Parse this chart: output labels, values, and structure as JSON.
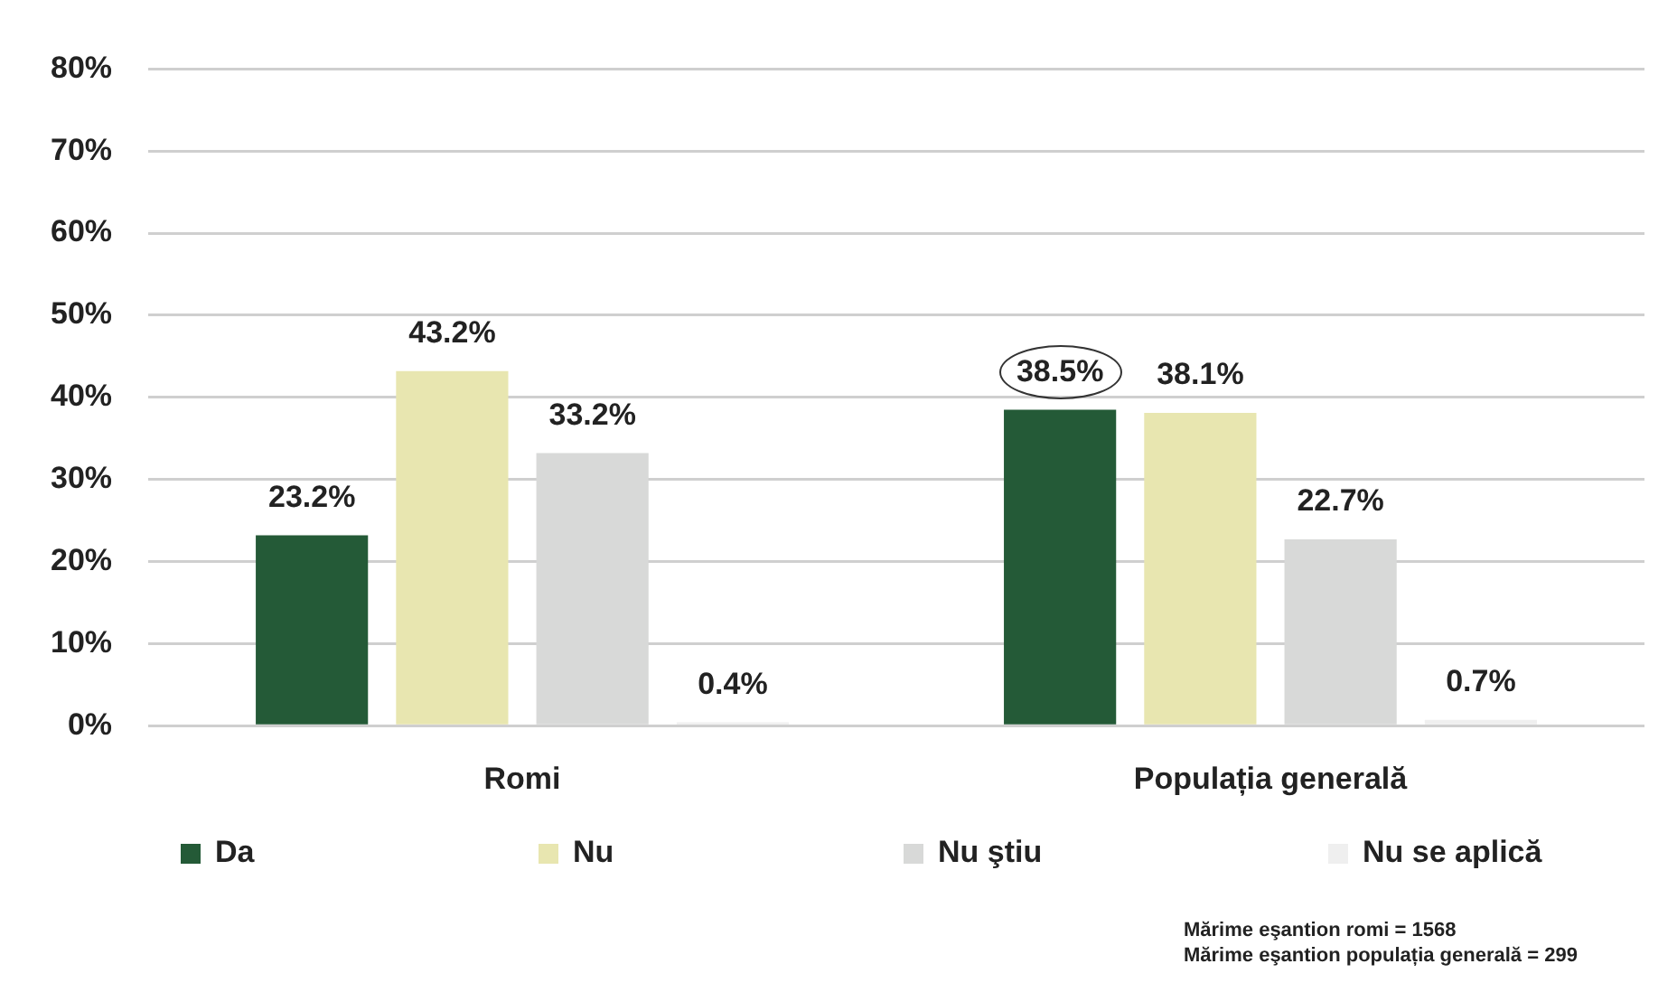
{
  "chart_data": {
    "type": "bar",
    "categories": [
      "Romi",
      "Populația generală"
    ],
    "series": [
      {
        "name": "Da",
        "color": "#245a37",
        "values": [
          23.2,
          38.5
        ],
        "value_labels": [
          "23.2%",
          "38.5%"
        ]
      },
      {
        "name": "Nu",
        "color": "#e8e6b0",
        "values": [
          43.2,
          38.1
        ],
        "value_labels": [
          "43.2%",
          "38.1%"
        ]
      },
      {
        "name": "Nu ştiu",
        "color": "#d8d9d8",
        "values": [
          33.2,
          22.7
        ],
        "value_labels": [
          "33.2%",
          "22.7%"
        ]
      },
      {
        "name": "Nu se aplică",
        "color": "#efefef",
        "values": [
          0.4,
          0.7
        ],
        "value_labels": [
          "0.4%",
          "0.7%"
        ]
      }
    ],
    "ylim": [
      0,
      80
    ],
    "yticks": [
      {
        "value": 0,
        "label": "0%"
      },
      {
        "value": 10,
        "label": "10%"
      },
      {
        "value": 20,
        "label": "20%"
      },
      {
        "value": 30,
        "label": "30%"
      },
      {
        "value": 40,
        "label": "40%"
      },
      {
        "value": 50,
        "label": "50%"
      },
      {
        "value": 60,
        "label": "60%"
      },
      {
        "value": 70,
        "label": "70%"
      },
      {
        "value": 80,
        "label": "80%"
      }
    ],
    "grid": "y",
    "legend": "bottom",
    "annotations": [
      "Mărime eşantion romi = 1568",
      "Mărime eşantion populația generală = 299"
    ]
  }
}
